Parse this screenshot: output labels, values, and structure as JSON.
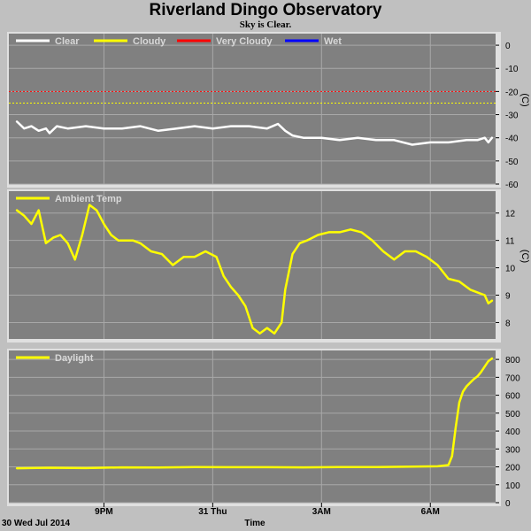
{
  "title": "Riverland Dingo Observatory",
  "subtitle": "Sky is Clear.",
  "colors": {
    "background": "#c0c0c0",
    "panel": "#808080",
    "grid": "#a8a8a8",
    "white": "#ffffff",
    "yellow": "#ffff00",
    "red": "#ff0000",
    "blue": "#0000ff"
  },
  "x_axis": {
    "label": "Time",
    "date_label": "30 Wed Jul 2014",
    "range_hours": [
      18.5,
      31.8
    ],
    "ticks": [
      {
        "at": 21,
        "label": "9PM"
      },
      {
        "at": 24,
        "label": "31 Thu"
      },
      {
        "at": 27,
        "label": "3AM"
      },
      {
        "at": 30,
        "label": "6AM"
      }
    ]
  },
  "chart_data": [
    {
      "type": "line",
      "ylabel": "(C)",
      "ylim": [
        -60,
        5
      ],
      "yticks": [
        0,
        -10,
        -20,
        -30,
        -40,
        -50,
        -60
      ],
      "grid": true,
      "legend_position": "top-left",
      "legend": [
        "Clear",
        "Cloudy",
        "Very Cloudy",
        "Wet"
      ],
      "thresholds": [
        {
          "name": "Very Cloudy",
          "value": -20,
          "color": "#ff0000"
        },
        {
          "name": "Cloudy",
          "value": -25,
          "color": "#ffff00"
        }
      ],
      "series": [
        {
          "name": "Clear",
          "color": "#ffffff",
          "x": [
            18.6,
            18.8,
            19.0,
            19.2,
            19.4,
            19.5,
            19.7,
            20.0,
            20.5,
            21.0,
            21.5,
            22.0,
            22.5,
            23.0,
            23.5,
            24.0,
            24.5,
            25.0,
            25.5,
            25.8,
            26.0,
            26.2,
            26.5,
            27.0,
            27.5,
            28.0,
            28.5,
            29.0,
            29.5,
            30.0,
            30.5,
            31.0,
            31.3,
            31.5,
            31.6,
            31.7
          ],
          "y": [
            -33,
            -36,
            -35,
            -37,
            -36,
            -38,
            -35,
            -36,
            -35,
            -36,
            -36,
            -35,
            -37,
            -36,
            -35,
            -36,
            -35,
            -35,
            -36,
            -34,
            -37,
            -39,
            -40,
            -40,
            -41,
            -40,
            -41,
            -41,
            -43,
            -42,
            -42,
            -41,
            -41,
            -40,
            -42,
            -40
          ]
        }
      ]
    },
    {
      "type": "line",
      "ylabel": "(C)",
      "ylim": [
        7.4,
        12.8
      ],
      "yticks": [
        12,
        11,
        10,
        9,
        8
      ],
      "grid": true,
      "legend_position": "top-left",
      "legend": [
        "Ambient Temp"
      ],
      "series": [
        {
          "name": "Ambient Temp",
          "color": "#ffff00",
          "x": [
            18.6,
            18.8,
            19.0,
            19.2,
            19.4,
            19.6,
            19.8,
            20.0,
            20.2,
            20.4,
            20.6,
            20.8,
            21.0,
            21.2,
            21.4,
            21.6,
            21.8,
            22.0,
            22.3,
            22.6,
            22.9,
            23.2,
            23.5,
            23.8,
            24.1,
            24.3,
            24.5,
            24.7,
            24.9,
            25.1,
            25.3,
            25.5,
            25.7,
            25.9,
            26.0,
            26.2,
            26.4,
            26.6,
            26.9,
            27.2,
            27.5,
            27.8,
            28.1,
            28.4,
            28.7,
            29.0,
            29.3,
            29.6,
            29.9,
            30.2,
            30.5,
            30.8,
            31.1,
            31.3,
            31.5,
            31.6,
            31.7
          ],
          "y": [
            12.1,
            11.9,
            11.6,
            12.1,
            10.9,
            11.1,
            11.2,
            10.9,
            10.3,
            11.2,
            12.3,
            12.1,
            11.6,
            11.2,
            11.0,
            11.0,
            11.0,
            10.9,
            10.6,
            10.5,
            10.1,
            10.4,
            10.4,
            10.6,
            10.4,
            9.7,
            9.3,
            9.0,
            8.6,
            7.8,
            7.6,
            7.8,
            7.6,
            8.0,
            9.2,
            10.5,
            10.9,
            11.0,
            11.2,
            11.3,
            11.3,
            11.4,
            11.3,
            11.0,
            10.6,
            10.3,
            10.6,
            10.6,
            10.4,
            10.1,
            9.6,
            9.5,
            9.2,
            9.1,
            9.0,
            8.7,
            8.8
          ]
        }
      ]
    },
    {
      "type": "line",
      "ylabel": "",
      "ylim": [
        0,
        850
      ],
      "yticks": [
        800,
        700,
        600,
        500,
        400,
        300,
        200,
        100,
        0
      ],
      "grid": true,
      "legend_position": "top-left",
      "legend": [
        "Daylight"
      ],
      "series": [
        {
          "name": "Daylight",
          "color": "#ffff00",
          "x": [
            18.6,
            19.5,
            20.5,
            21.5,
            22.5,
            23.5,
            24.5,
            25.5,
            26.5,
            27.5,
            28.5,
            29.5,
            30.2,
            30.5,
            30.6,
            30.7,
            30.8,
            30.9,
            31.0,
            31.1,
            31.2,
            31.3,
            31.4,
            31.5,
            31.6,
            31.7
          ],
          "y": [
            192,
            195,
            193,
            197,
            196,
            199,
            198,
            198,
            197,
            199,
            199,
            201,
            203,
            210,
            260,
            420,
            560,
            620,
            650,
            670,
            690,
            705,
            730,
            760,
            790,
            805
          ]
        }
      ]
    }
  ]
}
